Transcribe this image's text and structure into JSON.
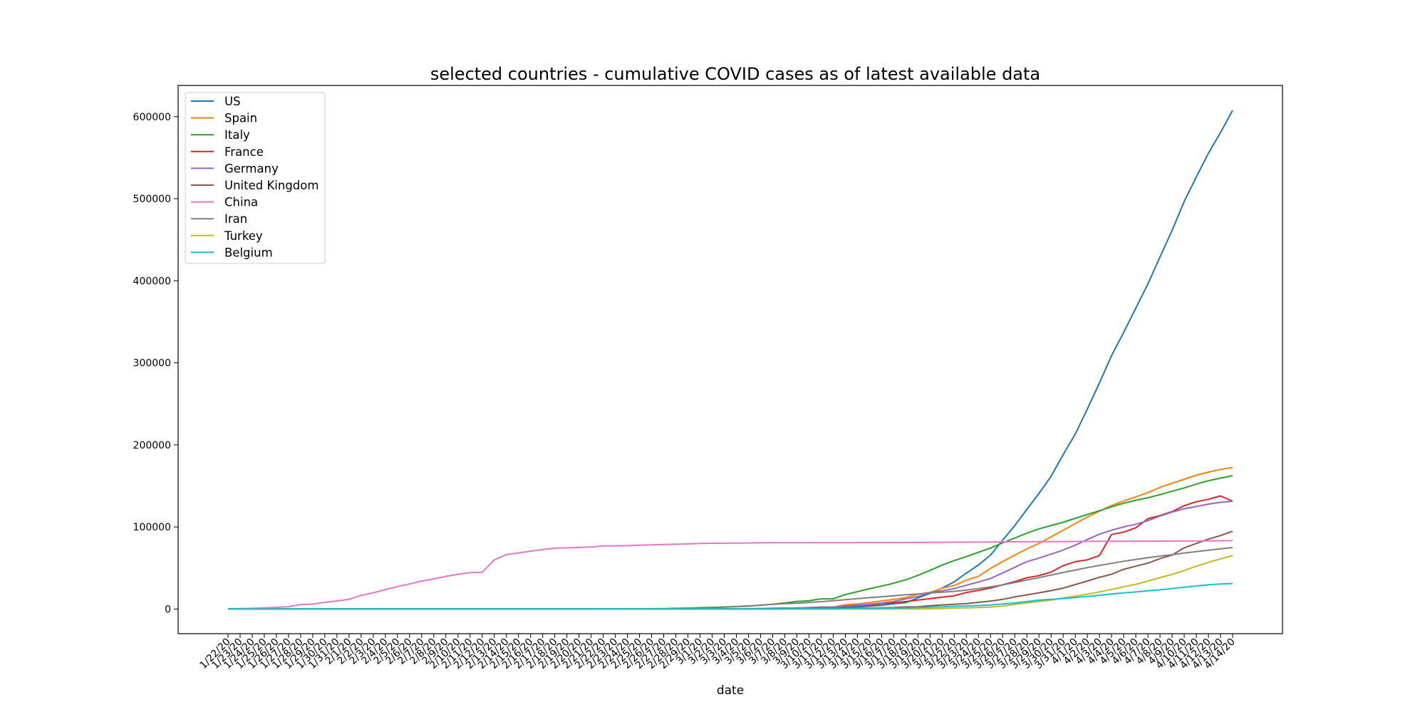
{
  "chart_data": {
    "type": "line",
    "title": "selected countries - cumulative COVID cases as of latest available data",
    "xlabel": "date",
    "ylabel": "",
    "ylim": [
      -30000,
      638000
    ],
    "yticks": [
      0,
      100000,
      200000,
      300000,
      400000,
      500000,
      600000
    ],
    "ytick_labels": [
      "0",
      "100000",
      "200000",
      "300000",
      "400000",
      "500000",
      "600000"
    ],
    "grid": false,
    "legend_position": "top-left",
    "categories": [
      "1/22/20",
      "1/23/20",
      "1/24/20",
      "1/25/20",
      "1/26/20",
      "1/27/20",
      "1/28/20",
      "1/29/20",
      "1/30/20",
      "1/31/20",
      "2/1/20",
      "2/2/20",
      "2/3/20",
      "2/4/20",
      "2/5/20",
      "2/6/20",
      "2/7/20",
      "2/8/20",
      "2/9/20",
      "2/10/20",
      "2/11/20",
      "2/12/20",
      "2/13/20",
      "2/14/20",
      "2/15/20",
      "2/16/20",
      "2/17/20",
      "2/18/20",
      "2/19/20",
      "2/20/20",
      "2/21/20",
      "2/22/20",
      "2/23/20",
      "2/24/20",
      "2/25/20",
      "2/26/20",
      "2/27/20",
      "2/28/20",
      "2/29/20",
      "3/1/20",
      "3/2/20",
      "3/3/20",
      "3/4/20",
      "3/5/20",
      "3/6/20",
      "3/7/20",
      "3/8/20",
      "3/9/20",
      "3/10/20",
      "3/11/20",
      "3/12/20",
      "3/13/20",
      "3/14/20",
      "3/15/20",
      "3/16/20",
      "3/17/20",
      "3/18/20",
      "3/19/20",
      "3/20/20",
      "3/21/20",
      "3/22/20",
      "3/23/20",
      "3/24/20",
      "3/25/20",
      "3/26/20",
      "3/27/20",
      "3/28/20",
      "3/29/20",
      "3/30/20",
      "3/31/20",
      "4/1/20",
      "4/2/20",
      "4/3/20",
      "4/4/20",
      "4/5/20",
      "4/6/20",
      "4/7/20",
      "4/8/20",
      "4/9/20",
      "4/10/20",
      "4/11/20",
      "4/12/20",
      "4/13/20",
      "4/14/20"
    ],
    "series": [
      {
        "name": "US",
        "color": "#1f77b4",
        "values": [
          1,
          1,
          2,
          2,
          5,
          5,
          5,
          5,
          5,
          7,
          8,
          8,
          11,
          11,
          11,
          11,
          11,
          11,
          11,
          11,
          12,
          12,
          13,
          13,
          13,
          13,
          13,
          13,
          13,
          13,
          15,
          15,
          15,
          51,
          51,
          57,
          58,
          60,
          68,
          74,
          98,
          118,
          149,
          217,
          262,
          402,
          518,
          583,
          959,
          1281,
          1663,
          2179,
          2727,
          3499,
          4632,
          6421,
          7786,
          13680,
          19101,
          25493,
          33276,
          43847,
          53740,
          65778,
          83836,
          101657,
          121478,
          140886,
          161807,
          188172,
          213372,
          243762,
          275586,
          308853,
          337072,
          366667,
          396223,
          429052,
          461437,
          496535,
          526396,
          555313,
          580619,
          607670
        ]
      },
      {
        "name": "Spain",
        "color": "#ff7f0e",
        "values": [
          0,
          0,
          0,
          0,
          0,
          0,
          0,
          0,
          0,
          0,
          1,
          1,
          1,
          1,
          1,
          1,
          1,
          1,
          2,
          2,
          2,
          2,
          2,
          2,
          2,
          2,
          2,
          2,
          2,
          2,
          2,
          2,
          2,
          2,
          6,
          13,
          15,
          32,
          45,
          84,
          120,
          165,
          222,
          259,
          400,
          500,
          673,
          1073,
          1695,
          2277,
          2277,
          5232,
          6391,
          7798,
          9942,
          11748,
          13910,
          17963,
          20410,
          25374,
          28768,
          35136,
          39885,
          49515,
          57786,
          65719,
          73235,
          80110,
          87956,
          95923,
          104118,
          112065,
          119199,
          126168,
          131646,
          136675,
          141942,
          148220,
          153222,
          158273,
          163027,
          166831,
          170099,
          172541
        ]
      },
      {
        "name": "Italy",
        "color": "#2ca02c",
        "values": [
          0,
          0,
          0,
          0,
          0,
          0,
          0,
          0,
          0,
          2,
          2,
          2,
          2,
          2,
          2,
          2,
          3,
          3,
          3,
          3,
          3,
          3,
          3,
          3,
          3,
          3,
          3,
          3,
          3,
          3,
          20,
          62,
          155,
          229,
          322,
          453,
          655,
          888,
          1128,
          1694,
          2036,
          2502,
          3089,
          3858,
          4636,
          5883,
          7375,
          9172,
          10149,
          12462,
          12462,
          17660,
          21157,
          24747,
          27980,
          31506,
          35713,
          41035,
          47021,
          53578,
          59138,
          63927,
          69176,
          74386,
          80589,
          86498,
          92472,
          97689,
          101739,
          105792,
          110574,
          115242,
          119827,
          124632,
          128948,
          132547,
          135586,
          139422,
          143626,
          147577,
          152271,
          156363,
          159516,
          162488
        ]
      },
      {
        "name": "France",
        "color": "#d62728",
        "values": [
          0,
          0,
          2,
          3,
          3,
          3,
          4,
          5,
          5,
          5,
          6,
          6,
          6,
          6,
          6,
          6,
          6,
          11,
          11,
          11,
          11,
          11,
          11,
          11,
          12,
          12,
          12,
          12,
          12,
          12,
          12,
          12,
          12,
          12,
          14,
          18,
          38,
          57,
          100,
          130,
          191,
          204,
          288,
          380,
          656,
          959,
          1136,
          1219,
          1794,
          2293,
          2293,
          3681,
          4496,
          4532,
          6683,
          7715,
          9124,
          10970,
          12758,
          14463,
          16243,
          20123,
          22622,
          25600,
          29551,
          33402,
          38105,
          40708,
          45170,
          52827,
          57749,
          59929,
          65202,
          90848,
          93773,
          98963,
          110065,
          113959,
          118781,
          125931,
          130727,
          133670,
          137877,
          131361
        ]
      },
      {
        "name": "Germany",
        "color": "#9467bd",
        "values": [
          0,
          0,
          0,
          0,
          0,
          1,
          4,
          4,
          4,
          5,
          8,
          10,
          12,
          12,
          12,
          12,
          13,
          13,
          14,
          14,
          16,
          16,
          16,
          16,
          16,
          16,
          16,
          16,
          16,
          16,
          16,
          16,
          16,
          16,
          17,
          27,
          46,
          48,
          79,
          130,
          159,
          196,
          262,
          482,
          670,
          799,
          1040,
          1176,
          1457,
          1908,
          2078,
          3675,
          4585,
          5795,
          7272,
          9257,
          12327,
          15320,
          19848,
          22213,
          24873,
          29056,
          32986,
          37323,
          43938,
          50871,
          57695,
          62095,
          66885,
          71808,
          77872,
          84794,
          91159,
          96092,
          100123,
          103374,
          107663,
          113296,
          118181,
          122171,
          124908,
          127854,
          130072,
          131359
        ]
      },
      {
        "name": "United Kingdom",
        "color": "#8c564b",
        "values": [
          0,
          0,
          0,
          0,
          0,
          0,
          0,
          0,
          0,
          2,
          2,
          2,
          2,
          2,
          2,
          2,
          3,
          3,
          3,
          8,
          8,
          9,
          9,
          9,
          9,
          9,
          9,
          9,
          9,
          9,
          9,
          9,
          9,
          13,
          13,
          15,
          15,
          20,
          23,
          36,
          40,
          51,
          85,
          115,
          163,
          206,
          273,
          321,
          382,
          456,
          456,
          798,
          1140,
          1143,
          1551,
          1960,
          2642,
          2716,
          4014,
          5067,
          5745,
          6726,
          8164,
          9640,
          11812,
          14745,
          17312,
          19780,
          22453,
          25481,
          29865,
          34173,
          38689,
          42477,
          48436,
          52279,
          55949,
          61474,
          65872,
          74605,
          79874,
          85206,
          89570,
          94845
        ]
      },
      {
        "name": "China",
        "color": "#e377c2",
        "values": [
          548,
          643,
          920,
          1406,
          2075,
          2877,
          5509,
          6087,
          8141,
          9802,
          11891,
          16630,
          19716,
          23707,
          27440,
          30587,
          34110,
          36814,
          39829,
          42354,
          44386,
          44759,
          59895,
          66358,
          68413,
          70513,
          72434,
          74211,
          74619,
          75077,
          75550,
          77001,
          77022,
          77241,
          77754,
          78166,
          78600,
          78928,
          79356,
          79932,
          80136,
          80261,
          80386,
          80537,
          80690,
          80770,
          80823,
          80860,
          80887,
          80921,
          80932,
          80945,
          80977,
          81003,
          81033,
          81058,
          81102,
          81156,
          81250,
          81305,
          81435,
          81498,
          81591,
          81661,
          81782,
          81897,
          81999,
          82122,
          82198,
          82279,
          82361,
          82432,
          82511,
          82543,
          82602,
          82665,
          82718,
          82809,
          82883,
          82941,
          83014,
          83134,
          83213,
          83306
        ]
      },
      {
        "name": "Iran",
        "color": "#7f7f7f",
        "values": [
          0,
          0,
          0,
          0,
          0,
          0,
          0,
          0,
          0,
          0,
          0,
          0,
          0,
          0,
          0,
          0,
          0,
          0,
          0,
          0,
          0,
          0,
          0,
          0,
          0,
          0,
          0,
          0,
          2,
          5,
          18,
          28,
          43,
          61,
          95,
          139,
          245,
          388,
          593,
          978,
          1501,
          2336,
          2922,
          3513,
          4747,
          5823,
          6566,
          7161,
          8042,
          9000,
          10075,
          11364,
          12729,
          13938,
          14991,
          16169,
          17361,
          18407,
          19644,
          20610,
          21638,
          23049,
          24811,
          27017,
          29406,
          32332,
          35408,
          38309,
          41495,
          44605,
          47593,
          50468,
          53183,
          55743,
          58226,
          60500,
          62589,
          64586,
          66220,
          68192,
          70029,
          71686,
          73303,
          74877
        ]
      },
      {
        "name": "Turkey",
        "color": "#bcbd22",
        "values": [
          0,
          0,
          0,
          0,
          0,
          0,
          0,
          0,
          0,
          0,
          0,
          0,
          0,
          0,
          0,
          0,
          0,
          0,
          0,
          0,
          0,
          0,
          0,
          0,
          0,
          0,
          0,
          0,
          0,
          0,
          0,
          0,
          0,
          0,
          0,
          0,
          0,
          0,
          0,
          0,
          0,
          0,
          0,
          0,
          0,
          0,
          0,
          0,
          0,
          1,
          1,
          5,
          5,
          6,
          18,
          47,
          98,
          192,
          359,
          670,
          1236,
          1529,
          1872,
          2433,
          3629,
          5698,
          7402,
          9217,
          10827,
          13531,
          15679,
          18135,
          20921,
          23934,
          27069,
          30217,
          34109,
          38226,
          42282,
          47029,
          52167,
          56956,
          61049,
          65111
        ]
      },
      {
        "name": "Belgium",
        "color": "#17becf",
        "values": [
          0,
          0,
          0,
          0,
          0,
          0,
          0,
          0,
          0,
          0,
          0,
          0,
          0,
          0,
          1,
          1,
          1,
          1,
          1,
          1,
          1,
          1,
          1,
          1,
          1,
          1,
          1,
          1,
          1,
          1,
          1,
          1,
          1,
          1,
          1,
          1,
          1,
          1,
          1,
          2,
          8,
          13,
          23,
          50,
          109,
          169,
          200,
          239,
          267,
          314,
          314,
          559,
          689,
          886,
          1058,
          1243,
          1486,
          1795,
          2257,
          2815,
          3401,
          3743,
          4269,
          4937,
          6235,
          7284,
          9134,
          10836,
          11899,
          12775,
          13964,
          15348,
          16770,
          18431,
          19691,
          20814,
          22194,
          23403,
          24983,
          26667,
          28018,
          29647,
          30589,
          31119
        ]
      }
    ]
  }
}
